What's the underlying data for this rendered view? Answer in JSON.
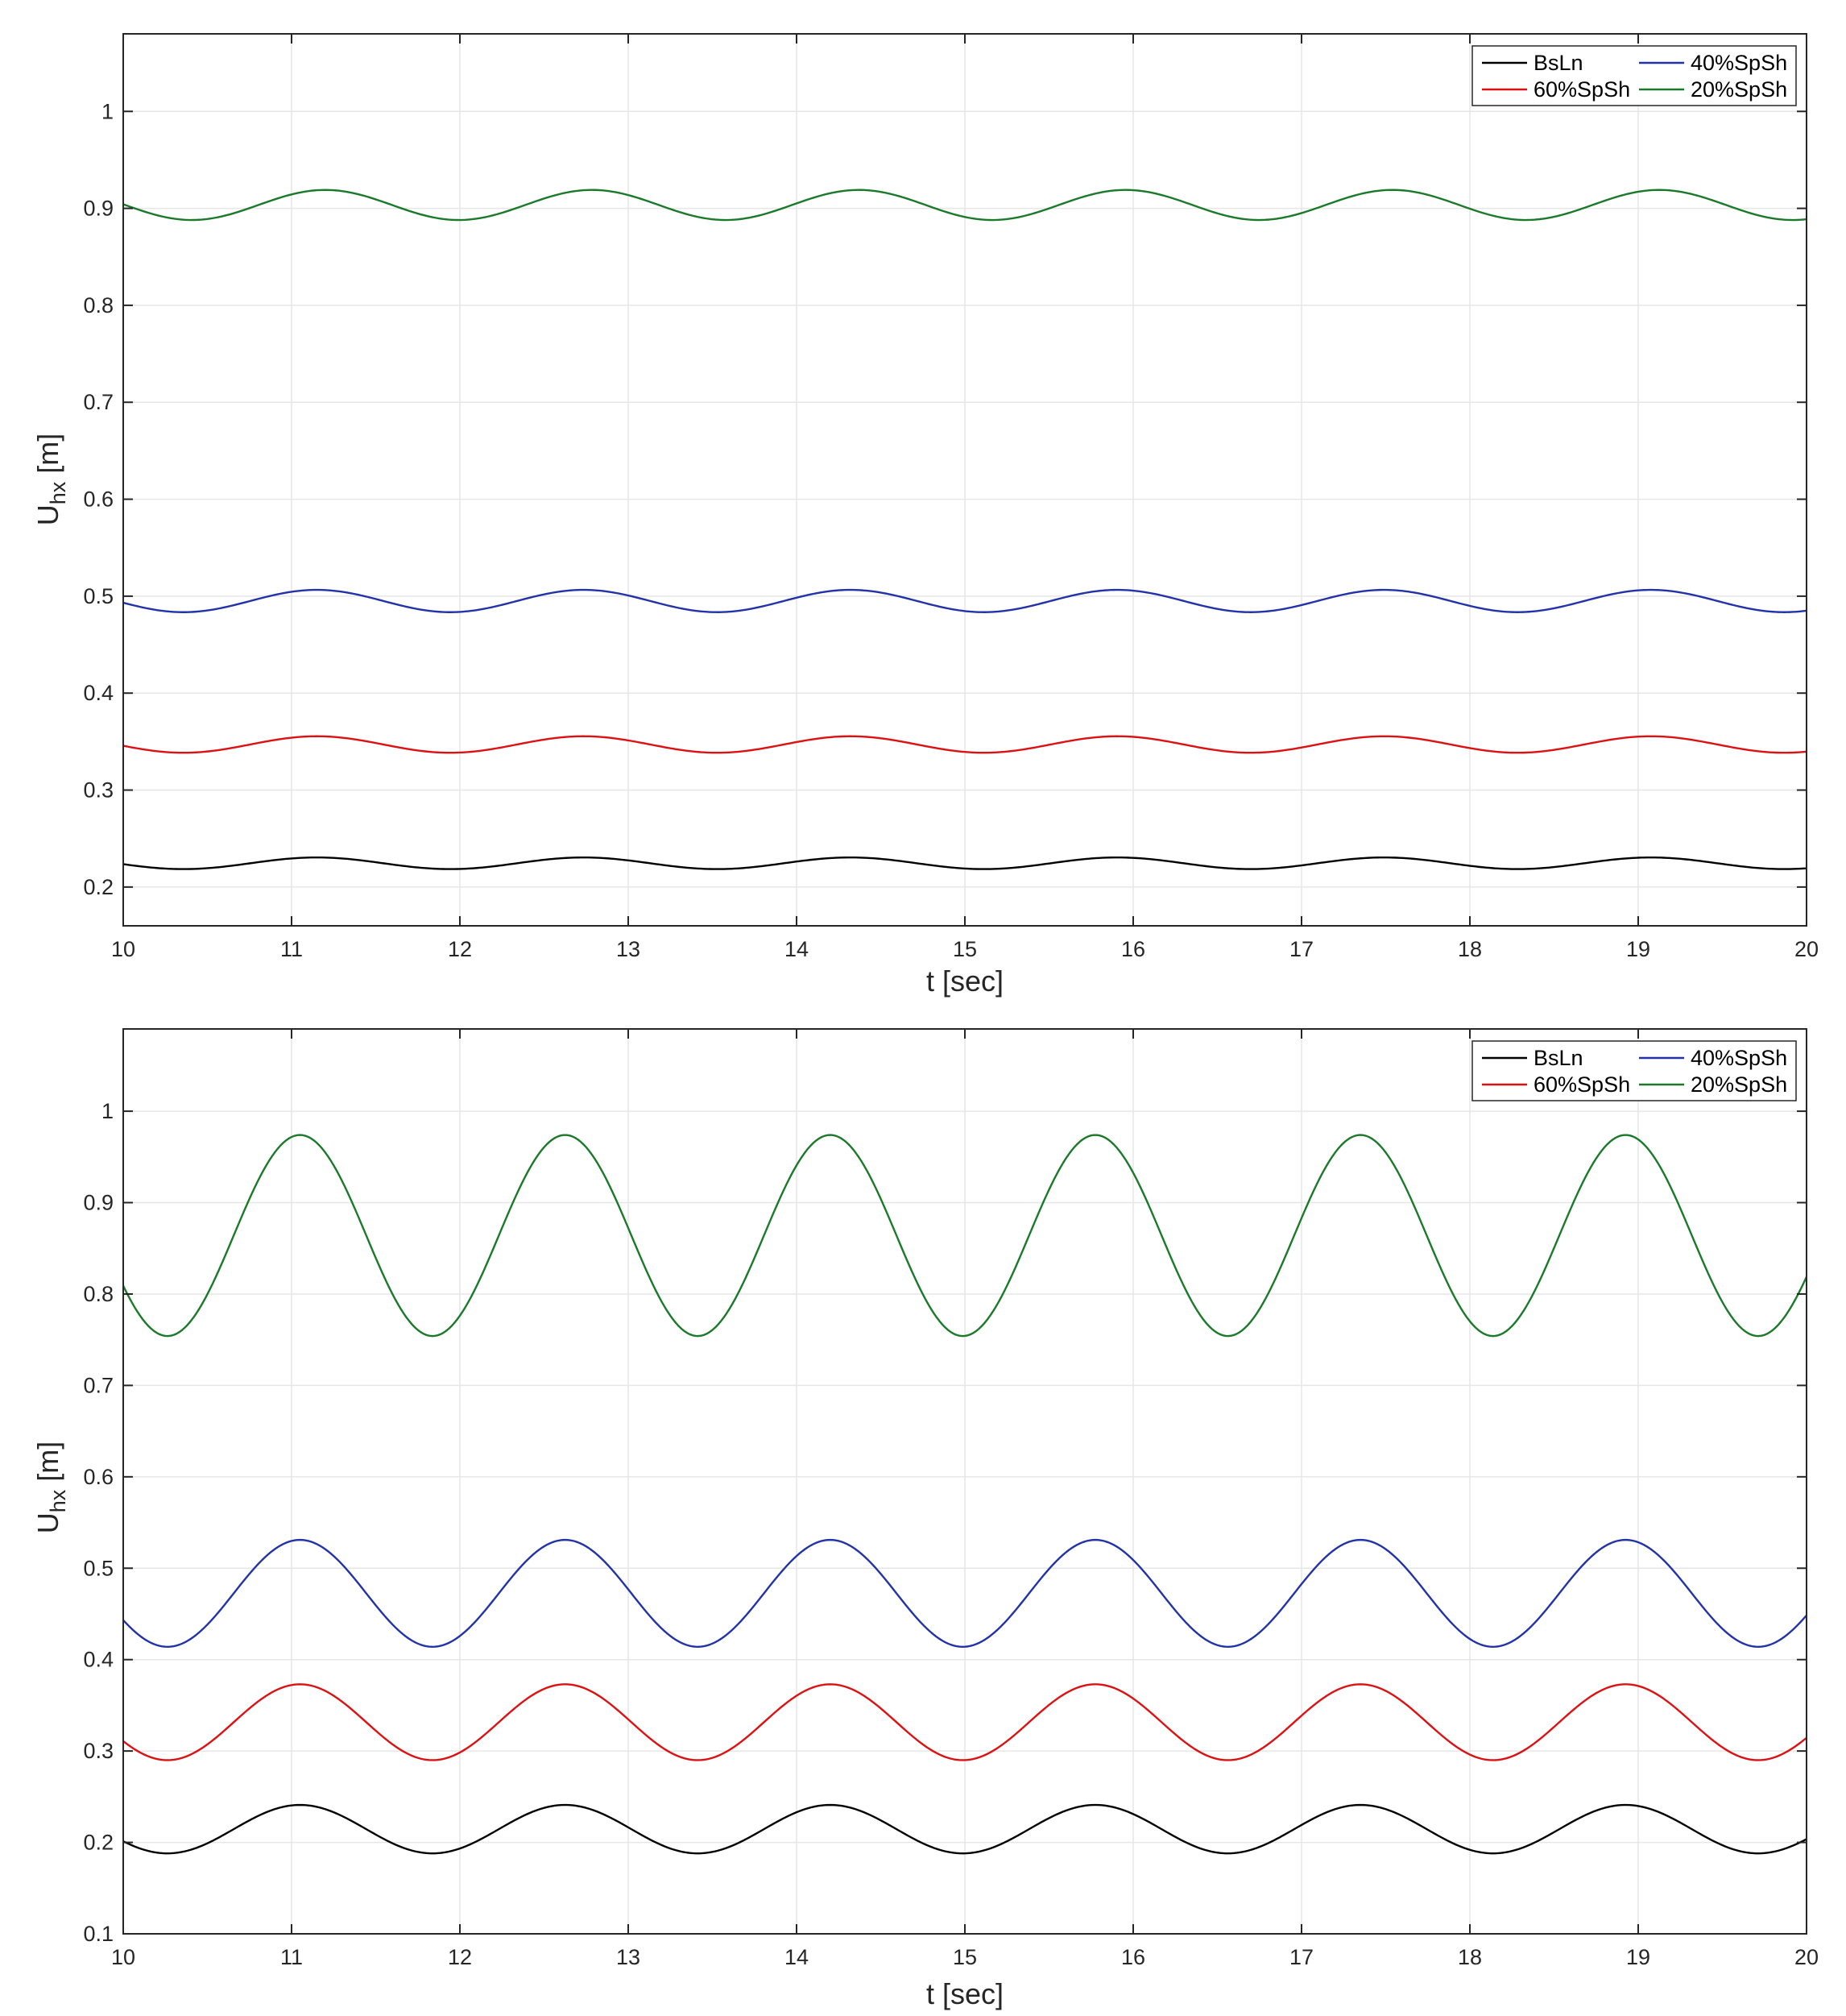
{
  "chart_data": [
    {
      "type": "line",
      "xlabel": "t [sec]",
      "ylabel": {
        "main": "U",
        "sub": "hx",
        "unit": " [m]"
      },
      "xlim": [
        10,
        20
      ],
      "ylim": [
        0.16,
        1.08
      ],
      "xticks": [
        "10",
        "11",
        "12",
        "13",
        "14",
        "15",
        "16",
        "17",
        "18",
        "19",
        "20"
      ],
      "yticks": [
        "0.2",
        "0.3",
        "0.4",
        "0.5",
        "0.6",
        "0.7",
        "0.8",
        "0.9",
        "1"
      ],
      "grid": true,
      "legend_position": "top-right",
      "legend": [
        "BsLn",
        "40%SpSh",
        "60%SpSh",
        "20%SpSh"
      ],
      "series": [
        {
          "name": "BsLn",
          "color": "#000000",
          "mean": 0.2245,
          "amplitude": 0.006,
          "period": 1.585,
          "peak_time": 11.15,
          "x_range": [
            10,
            20
          ]
        },
        {
          "name": "40%SpSh",
          "color": "#2233aa",
          "mean": 0.495,
          "amplitude": 0.0115,
          "period": 1.585,
          "peak_time": 11.15,
          "x_range": [
            10,
            20
          ]
        },
        {
          "name": "60%SpSh",
          "color": "#dd1111",
          "mean": 0.347,
          "amplitude": 0.0085,
          "period": 1.585,
          "peak_time": 11.15,
          "x_range": [
            10,
            20
          ]
        },
        {
          "name": "20%SpSh",
          "color": "#1a7a2a",
          "mean": 0.9035,
          "amplitude": 0.0155,
          "period": 1.585,
          "peak_time": 11.2,
          "x_range": [
            10,
            20
          ]
        }
      ]
    },
    {
      "type": "line",
      "xlabel": "t [sec]",
      "ylabel": {
        "main": "U",
        "sub": "hx",
        "unit": " [m]"
      },
      "xlim": [
        10,
        20
      ],
      "ylim": [
        0.1,
        1.09
      ],
      "xticks": [
        "10",
        "11",
        "12",
        "13",
        "14",
        "15",
        "16",
        "17",
        "18",
        "19",
        "20"
      ],
      "yticks": [
        "0.1",
        "0.2",
        "0.3",
        "0.4",
        "0.5",
        "0.6",
        "0.7",
        "0.8",
        "0.9",
        "1"
      ],
      "grid": true,
      "legend_position": "top-right",
      "legend": [
        "BsLn",
        "40%SpSh",
        "60%SpSh",
        "20%SpSh"
      ],
      "series": [
        {
          "name": "BsLn",
          "color": "#000000",
          "mean": 0.2145,
          "amplitude": 0.0265,
          "period": 1.575,
          "peak_time": 11.05,
          "x_range": [
            10,
            20
          ]
        },
        {
          "name": "40%SpSh",
          "color": "#2233aa",
          "mean": 0.4725,
          "amplitude": 0.0585,
          "period": 1.575,
          "peak_time": 11.05,
          "x_range": [
            10,
            20
          ]
        },
        {
          "name": "60%SpSh",
          "color": "#dd1111",
          "mean": 0.3315,
          "amplitude": 0.0415,
          "period": 1.575,
          "peak_time": 11.05,
          "x_range": [
            10,
            20
          ]
        },
        {
          "name": "20%SpSh",
          "color": "#1a7a2a",
          "mean": 0.864,
          "amplitude": 0.11,
          "period": 1.575,
          "peak_time": 11.05,
          "x_range": [
            10,
            20
          ]
        }
      ]
    }
  ]
}
